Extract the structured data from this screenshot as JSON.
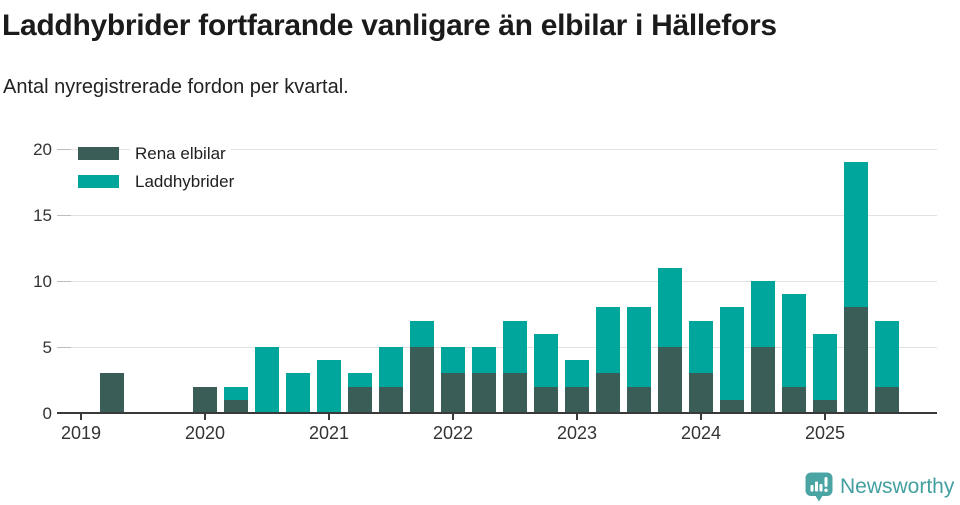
{
  "header": {
    "title": "Laddhybrider fortfarande vanligare än elbilar i Hällefors",
    "subtitle": "Antal nyregistrerade fordon per kvartal."
  },
  "chart_data": {
    "type": "bar",
    "stacked": true,
    "title": "Laddhybrider fortfarande vanligare än elbilar i Hällefors",
    "subtitle": "Antal nyregistrerade fordon per kvartal.",
    "xlabel": "",
    "ylabel": "",
    "ylim": [
      0,
      20
    ],
    "y_ticks": [
      0,
      5,
      10,
      15,
      20
    ],
    "grid": "horizontal",
    "legend_position": "top-left",
    "categories": [
      "2019 Q1",
      "2019 Q2",
      "2019 Q3",
      "2019 Q4",
      "2020 Q1",
      "2020 Q2",
      "2020 Q3",
      "2020 Q4",
      "2021 Q1",
      "2021 Q2",
      "2021 Q3",
      "2021 Q4",
      "2022 Q1",
      "2022 Q2",
      "2022 Q3",
      "2022 Q4",
      "2023 Q1",
      "2023 Q2",
      "2023 Q3",
      "2023 Q4",
      "2024 Q1",
      "2024 Q2",
      "2024 Q3",
      "2024 Q4",
      "2025 Q1",
      "2025 Q2",
      "2025 Q3"
    ],
    "series": [
      {
        "name": "Rena elbilar",
        "color": "#3b5d58",
        "values": [
          0,
          3,
          0,
          0,
          2,
          1,
          0,
          0,
          0,
          2,
          2,
          5,
          3,
          3,
          3,
          2,
          2,
          3,
          2,
          5,
          3,
          1,
          5,
          2,
          1,
          8,
          2
        ]
      },
      {
        "name": "Laddhybrider",
        "color": "#00a69b",
        "values": [
          0,
          0,
          0,
          0,
          0,
          1,
          5,
          3,
          4,
          1,
          3,
          2,
          2,
          2,
          4,
          4,
          2,
          5,
          6,
          6,
          4,
          7,
          5,
          7,
          5,
          11,
          5
        ]
      }
    ],
    "year_ticks": [
      {
        "label": "2019",
        "slot": 0
      },
      {
        "label": "2020",
        "slot": 4
      },
      {
        "label": "2021",
        "slot": 8
      },
      {
        "label": "2022",
        "slot": 12
      },
      {
        "label": "2023",
        "slot": 16
      },
      {
        "label": "2024",
        "slot": 20
      },
      {
        "label": "2025",
        "slot": 24
      }
    ]
  },
  "footer": {
    "brand": "Newsworthy",
    "logo_color": "#4ba4a4",
    "text_color": "#44a0a0"
  }
}
